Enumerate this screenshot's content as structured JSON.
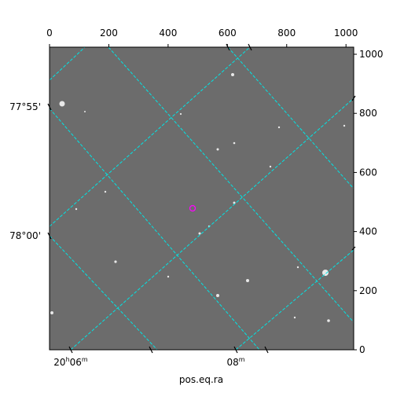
{
  "chart_data": {
    "type": "image",
    "xlabel": "pos.eq.ra",
    "xlim": [
      0,
      1026
    ],
    "xticks": [
      0,
      200,
      400,
      600,
      800,
      1000
    ],
    "ylim": [
      0,
      1024
    ],
    "yticks": [
      0,
      200,
      400,
      600,
      800,
      1000
    ],
    "ra_labels": [
      [
        "20",
        "h",
        "06",
        "m"
      ],
      [
        "08",
        "m"
      ]
    ],
    "dec_labels": [
      "77°55'",
      "78°00'"
    ]
  }
}
